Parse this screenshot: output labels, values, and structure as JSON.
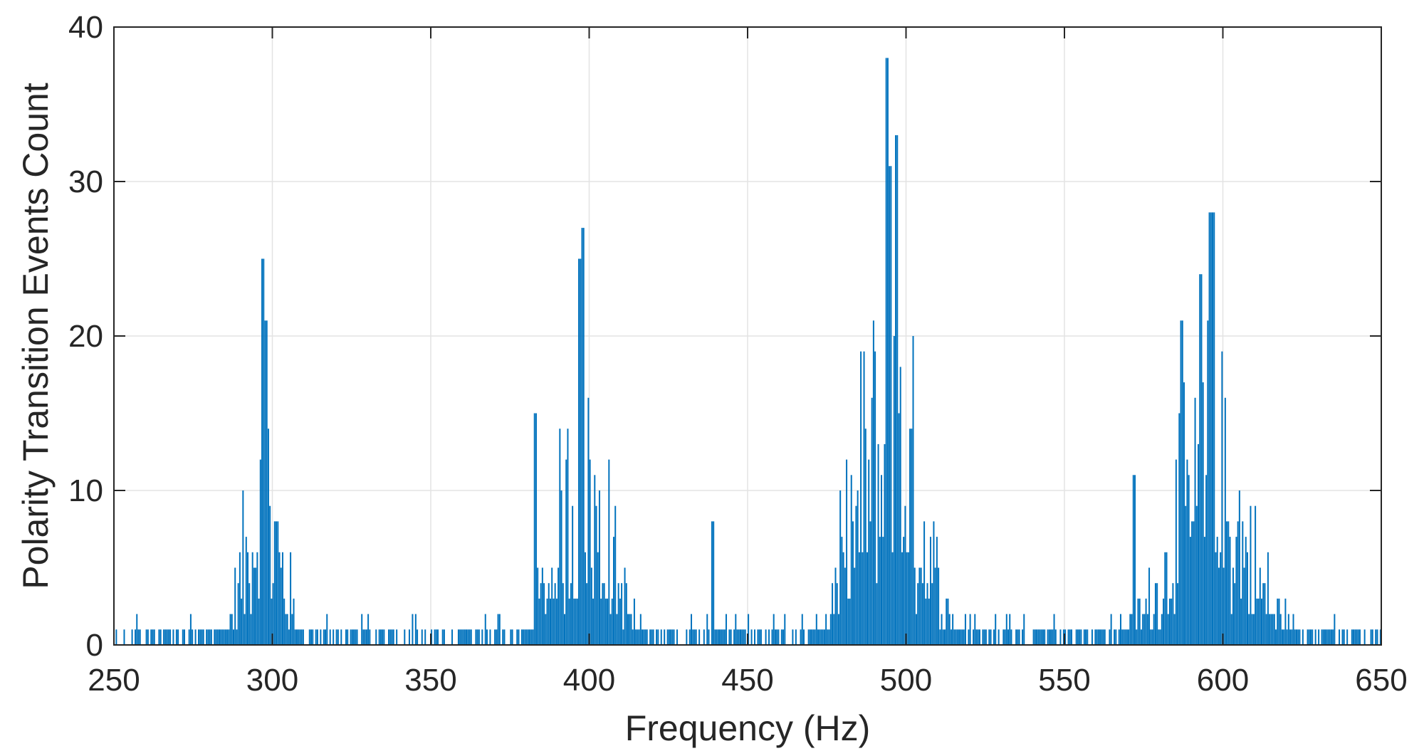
{
  "chart_data": {
    "type": "bar",
    "title": "",
    "xlabel": "Frequency (Hz)",
    "ylabel": "Polarity Transition Events Count",
    "xlim": [
      250,
      650
    ],
    "ylim": [
      0,
      40
    ],
    "xticks": [
      "250",
      "300",
      "350",
      "400",
      "450",
      "500",
      "550",
      "600",
      "650"
    ],
    "yticks": [
      "0",
      "10",
      "20",
      "30",
      "40"
    ],
    "grid": true,
    "bar_color": "#0072BD",
    "bin_width_hz": 0.5,
    "series": [
      {
        "peaks": [
          {
            "center_hz": 297,
            "max_count": 25,
            "spread_hz": 8
          },
          {
            "center_hz": 398,
            "max_count": 27,
            "spread_hz": 12
          },
          {
            "center_hz": 494,
            "max_count": 38,
            "spread_hz": 14
          },
          {
            "center_hz": 596,
            "max_count": 28,
            "spread_hz": 17
          }
        ],
        "notable_bars": [
          {
            "x": 297,
            "y": 25
          },
          {
            "x": 298,
            "y": 21
          },
          {
            "x": 398,
            "y": 27
          },
          {
            "x": 397,
            "y": 25
          },
          {
            "x": 494,
            "y": 38
          },
          {
            "x": 497,
            "y": 33
          },
          {
            "x": 495,
            "y": 31
          },
          {
            "x": 596,
            "y": 28
          },
          {
            "x": 597,
            "y": 28
          },
          {
            "x": 593,
            "y": 24
          },
          {
            "x": 587,
            "y": 21
          },
          {
            "x": 439,
            "y": 8
          },
          {
            "x": 383,
            "y": 15
          },
          {
            "x": 572,
            "y": 11
          }
        ],
        "baseline_count": 1
      }
    ]
  }
}
